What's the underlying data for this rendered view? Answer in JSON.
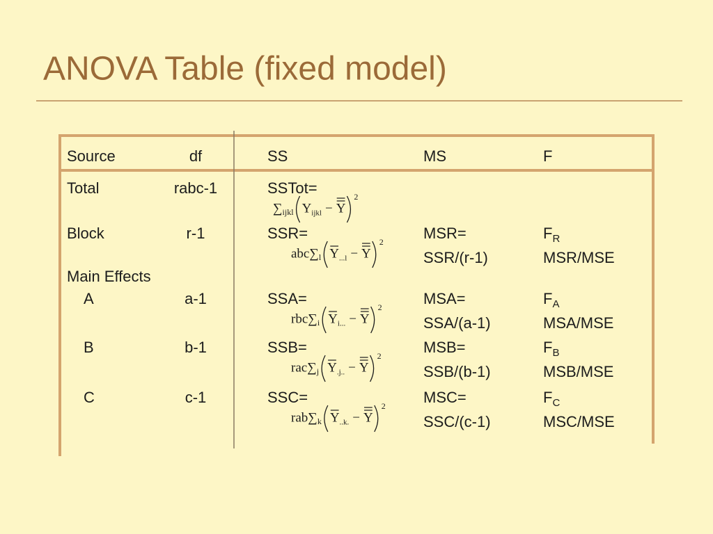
{
  "header": {
    "title": "ANOVA Table (fixed model)"
  },
  "table": {
    "columns": [
      "Source",
      "df",
      "SS",
      "MS",
      "F"
    ],
    "rows": [
      {
        "source": "Total",
        "df": "rabc-1",
        "ss": "SSTot=",
        "ss_formula": {
          "sum": "∑",
          "index": "ijkl",
          "y": "Y",
          "y_sub": "ijkl",
          "minus": "−",
          "grand": "Y",
          "power": "2"
        }
      },
      {
        "source": "Block",
        "df": "r-1",
        "ss": "SSR=",
        "ss_formula": {
          "coef": "abc",
          "sum": "∑",
          "index": "l",
          "y": "Y",
          "y_sub": "...l",
          "minus": "−",
          "grand": "Y",
          "power": "2"
        },
        "ms": "MSR=",
        "ms_def": "SSR/(r-1)",
        "f": "F",
        "f_sub": "R",
        "f_def": "MSR/MSE"
      },
      {
        "source": "Main Effects"
      },
      {
        "source": "A",
        "df": "a-1",
        "ss": "SSA=",
        "ss_formula": {
          "coef": "rbc",
          "sum": "∑",
          "index": "i",
          "y": "Y",
          "y_sub": "i...",
          "minus": "−",
          "grand": "Y",
          "power": "2"
        },
        "ms": "MSA=",
        "ms_def": "SSA/(a-1)",
        "f": "F",
        "f_sub": "A",
        "f_def": "MSA/MSE"
      },
      {
        "source": "B",
        "df": "b-1",
        "ss": "SSB=",
        "ss_formula": {
          "coef": "rac",
          "sum": "∑",
          "index": "j",
          "y": "Y",
          "y_sub": ".j..",
          "minus": "−",
          "grand": "Y",
          "power": "2"
        },
        "ms": "MSB=",
        "ms_def": "SSB/(b-1)",
        "f": "F",
        "f_sub": "B",
        "f_def": "MSB/MSE"
      },
      {
        "source": "C",
        "df": "c-1",
        "ss": "SSC=",
        "ss_formula": {
          "coef": "rab",
          "sum": "∑",
          "index": "k",
          "y": "Y",
          "y_sub": "..k.",
          "minus": "−",
          "grand": "Y",
          "power": "2"
        },
        "ms": "MSC=",
        "ms_def": "SSC/(c-1)",
        "f": "F",
        "f_sub": "C",
        "f_def": "MSC/MSE"
      }
    ]
  }
}
